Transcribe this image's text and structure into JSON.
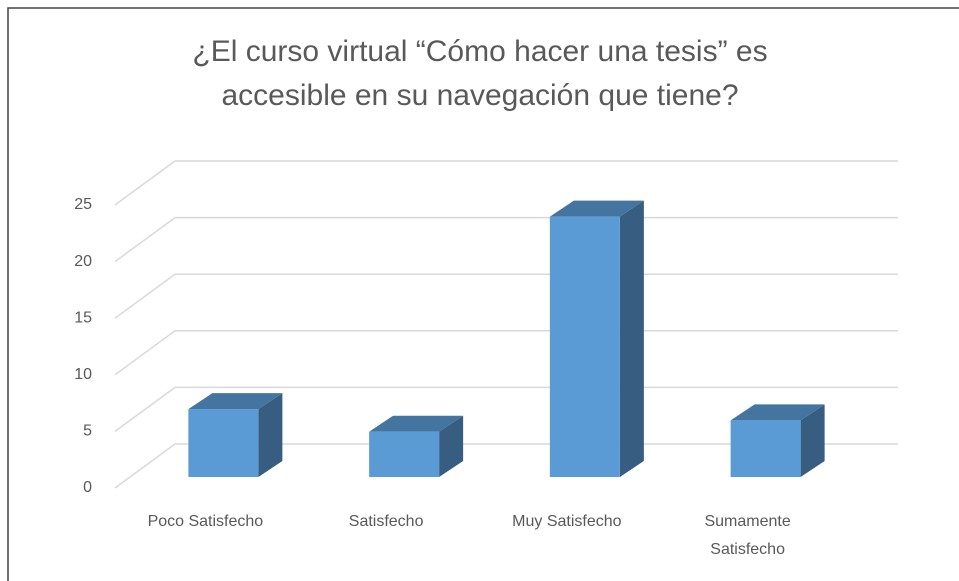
{
  "chart_data": {
    "type": "bar3d",
    "title": "¿El curso virtual  “Cómo hacer una tesis” es\naccesible en su navegación que tiene?",
    "categories": [
      "Poco Satisfecho",
      "Satisfecho",
      "Muy Satisfecho",
      "Sumamente Satisfecho"
    ],
    "values": [
      6,
      4,
      23,
      5
    ],
    "color": "#5b9bd5",
    "ylim": [
      0,
      25
    ],
    "yticks": [
      0,
      5,
      10,
      15,
      20,
      25
    ],
    "grid": true
  }
}
